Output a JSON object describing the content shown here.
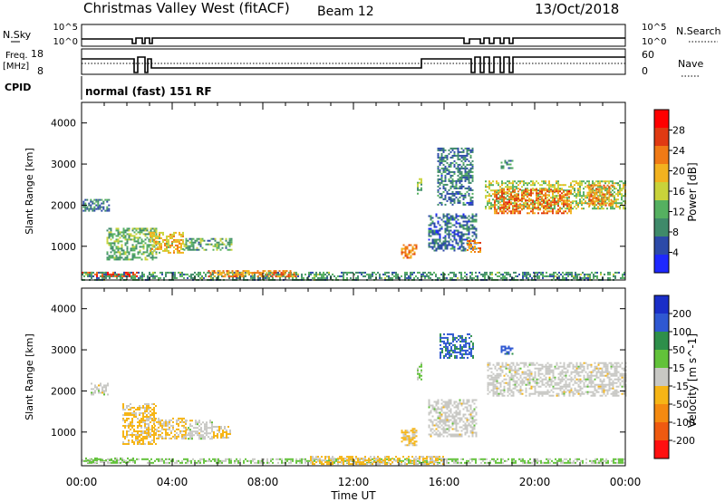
{
  "header": {
    "title": "Christmas Valley West (fitACF)",
    "beam": "Beam 12",
    "date": "13/Oct/2018",
    "cpid_label": "CPID",
    "cpid_text": "normal (fast) 151 RF"
  },
  "strips": {
    "nsky": {
      "label": "N.Sky",
      "ticks": [
        "10^5",
        "10^0"
      ]
    },
    "nsearch": {
      "label": "N.Search",
      "ticks": [
        "10^5",
        "10^0"
      ]
    },
    "freq": {
      "label_1": "Freq.",
      "label_2": "[MHz]",
      "ticks": [
        "18",
        "8"
      ]
    },
    "nave": {
      "label": "Nave",
      "ticks": [
        "60",
        "0"
      ]
    }
  },
  "colors": {
    "power": [
      "#1e28ff",
      "#2c4aa8",
      "#3f8a6a",
      "#55b060",
      "#c9d33a",
      "#f2b21f",
      "#f07a15",
      "#e03a12",
      "#ff0000"
    ],
    "velocity": [
      "#1a2ec8",
      "#2f58d2",
      "#2e8f4a",
      "#62c23a",
      "#c8c8c4",
      "#f6b516",
      "#f48a10",
      "#ef5a10",
      "#ff1010"
    ]
  },
  "chart_data": [
    {
      "type": "heatmap",
      "name": "power",
      "xlabel": "",
      "ylabel": "Slant Range [km]",
      "ylim": [
        180,
        4500
      ],
      "xlim": [
        0,
        24
      ],
      "yticks": [
        1000,
        2000,
        3000,
        4000
      ],
      "colorbar": {
        "label": "Power [dB]",
        "ticks": [
          "4",
          "8",
          "12",
          "16",
          "20",
          "24",
          "28"
        ],
        "tick_values": [
          4,
          8,
          12,
          16,
          20,
          24,
          28
        ],
        "range": [
          0,
          32
        ]
      },
      "regions": [
        {
          "t": [
            0.0,
            2.5
          ],
          "r": [
            250,
            380
          ],
          "v": 26
        },
        {
          "t": [
            0.0,
            24.0
          ],
          "r": [
            200,
            380
          ],
          "v": 10
        },
        {
          "t": [
            5.5,
            9.5
          ],
          "r": [
            250,
            420
          ],
          "v": 22
        },
        {
          "t": [
            0.05,
            1.25
          ],
          "r": [
            1850,
            2150
          ],
          "v": 8
        },
        {
          "t": [
            1.1,
            3.3
          ],
          "r": [
            700,
            1450
          ],
          "v": 12
        },
        {
          "t": [
            3.0,
            4.5
          ],
          "r": [
            850,
            1350
          ],
          "v": 18
        },
        {
          "t": [
            4.5,
            6.6
          ],
          "r": [
            900,
            1200
          ],
          "v": 11
        },
        {
          "t": [
            14.1,
            14.8
          ],
          "r": [
            700,
            1050
          ],
          "v": 22
        },
        {
          "t": [
            14.8,
            15.0
          ],
          "r": [
            2300,
            2700
          ],
          "v": 13
        },
        {
          "t": [
            15.3,
            17.4
          ],
          "r": [
            900,
            1800
          ],
          "v": 7
        },
        {
          "t": [
            17.0,
            17.6
          ],
          "r": [
            850,
            1150
          ],
          "v": 22
        },
        {
          "t": [
            15.7,
            17.3
          ],
          "r": [
            2000,
            3400
          ],
          "v": 8
        },
        {
          "t": [
            17.8,
            24.0
          ],
          "r": [
            1900,
            2600
          ],
          "v": 15
        },
        {
          "t": [
            18.2,
            21.6
          ],
          "r": [
            1800,
            2400
          ],
          "v": 24
        },
        {
          "t": [
            22.3,
            23.5
          ],
          "r": [
            2000,
            2500
          ],
          "v": 22
        },
        {
          "t": [
            18.5,
            19.0
          ],
          "r": [
            2900,
            3100
          ],
          "v": 9
        }
      ]
    },
    {
      "type": "heatmap",
      "name": "velocity",
      "xlabel": "Time UT",
      "ylabel": "Slant Range [km]",
      "ylim": [
        180,
        4500
      ],
      "xlim": [
        0,
        24
      ],
      "xticks": [
        "00:00",
        "04:00",
        "08:00",
        "12:00",
        "16:00",
        "20:00",
        "00:00"
      ],
      "xtick_values": [
        0,
        4,
        8,
        12,
        16,
        20,
        24
      ],
      "yticks": [
        1000,
        2000,
        3000,
        4000
      ],
      "colorbar": {
        "label": "Velocity [m s^-1]",
        "ticks": [
          "200",
          "100",
          "50",
          "15",
          "-15",
          "-50",
          "-100",
          "-200"
        ],
        "tick_values": [
          200,
          100,
          50,
          15,
          -15,
          -50,
          -100,
          -200
        ],
        "range": [
          -250,
          250
        ]
      },
      "regions": [
        {
          "t": [
            0.0,
            24.0
          ],
          "r": [
            230,
            360
          ],
          "v": 35
        },
        {
          "t": [
            0.0,
            2.3
          ],
          "r": [
            250,
            380
          ],
          "v": 45
        },
        {
          "t": [
            10.0,
            16.0
          ],
          "r": [
            200,
            420
          ],
          "v": -35
        },
        {
          "t": [
            0.4,
            1.2
          ],
          "r": [
            1900,
            2200
          ],
          "v": 0
        },
        {
          "t": [
            1.8,
            3.3
          ],
          "r": [
            700,
            1700
          ],
          "v": -40
        },
        {
          "t": [
            3.2,
            4.6
          ],
          "r": [
            850,
            1350
          ],
          "v": -35
        },
        {
          "t": [
            4.6,
            5.8
          ],
          "r": [
            850,
            1300
          ],
          "v": 0
        },
        {
          "t": [
            5.8,
            6.6
          ],
          "r": [
            850,
            1150
          ],
          "v": -35
        },
        {
          "t": [
            14.1,
            14.8
          ],
          "r": [
            700,
            1100
          ],
          "v": -40
        },
        {
          "t": [
            14.8,
            15.0
          ],
          "r": [
            2300,
            2700
          ],
          "v": 40
        },
        {
          "t": [
            15.3,
            17.4
          ],
          "r": [
            900,
            1800
          ],
          "v": 0
        },
        {
          "t": [
            15.8,
            17.3
          ],
          "r": [
            2800,
            3400
          ],
          "v": 150
        },
        {
          "t": [
            17.9,
            24.0
          ],
          "r": [
            1900,
            2700
          ],
          "v": 0
        },
        {
          "t": [
            18.5,
            19.0
          ],
          "r": [
            2900,
            3100
          ],
          "v": 150
        }
      ]
    }
  ]
}
